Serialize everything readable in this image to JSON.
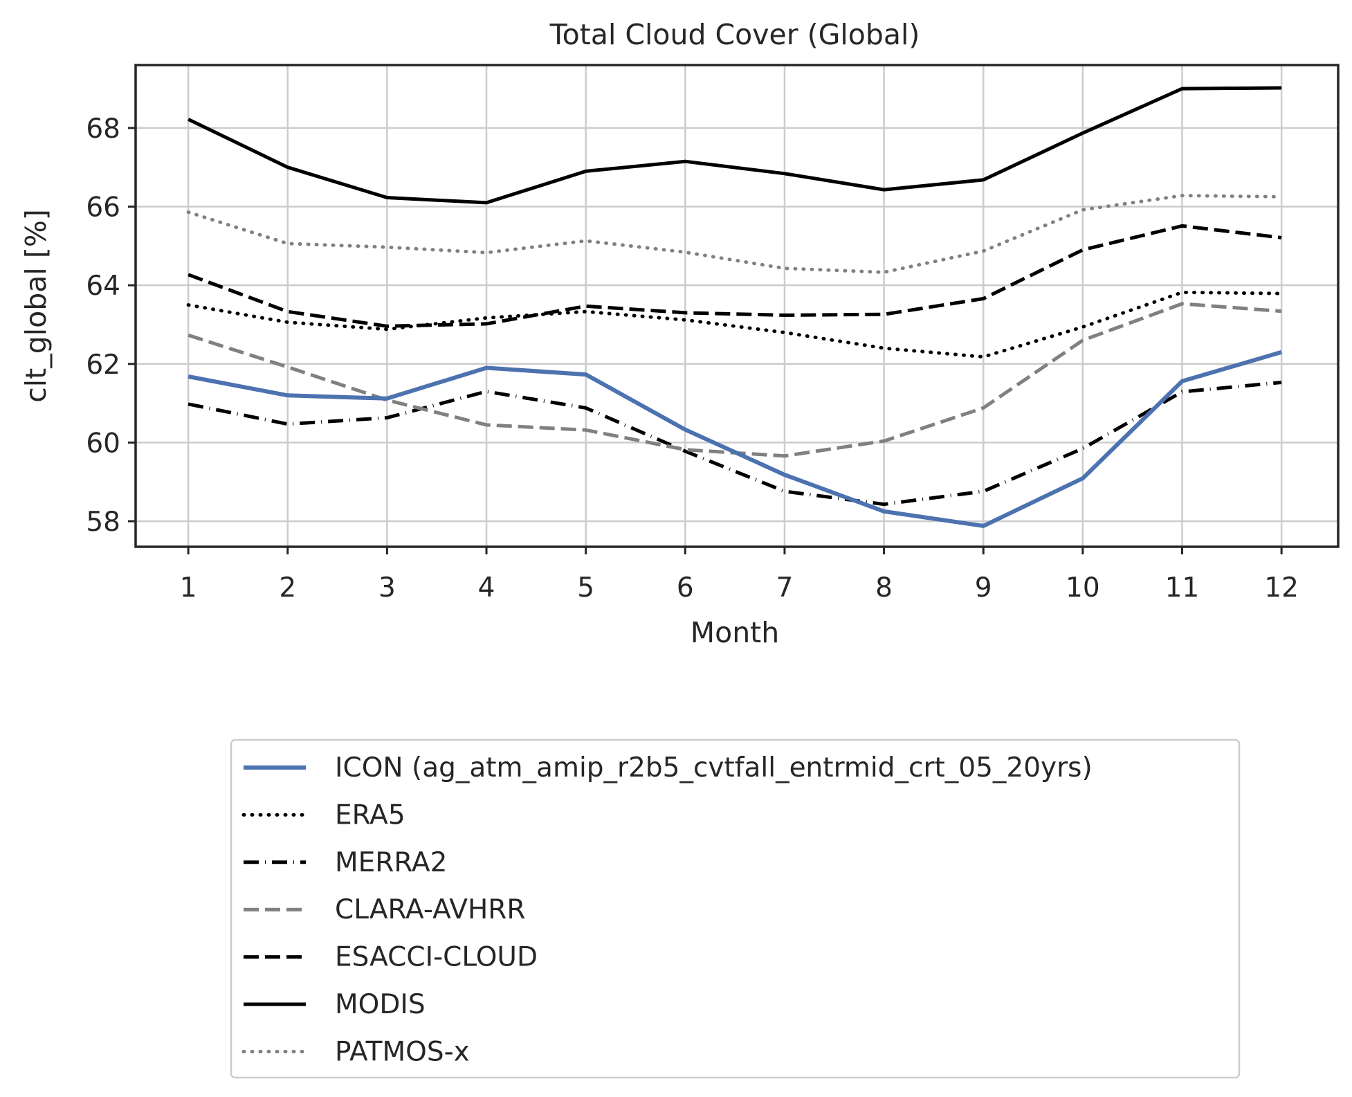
{
  "chart_data": {
    "type": "line",
    "title": "Total Cloud Cover (Global)",
    "xlabel": "Month",
    "ylabel": "clt_global [%]",
    "x": [
      1,
      2,
      3,
      4,
      5,
      6,
      7,
      8,
      9,
      10,
      11,
      12
    ],
    "x_ticks": [
      "1",
      "2",
      "3",
      "4",
      "5",
      "6",
      "7",
      "8",
      "9",
      "10",
      "11",
      "12"
    ],
    "xlim": [
      0.47,
      12.57
    ],
    "y_ticks": [
      "58",
      "60",
      "62",
      "64",
      "66",
      "68"
    ],
    "y_tick_values": [
      58,
      60,
      62,
      64,
      66,
      68
    ],
    "ylim": [
      57.35,
      69.6
    ],
    "grid": true,
    "legend_position": "below-center",
    "series": [
      {
        "name": "ICON (ag_atm_amip_r2b5_cvtfall_entrmid_crt_05_20yrs)",
        "color": "#4c72b0",
        "style": "solid",
        "values": [
          61.68,
          61.2,
          61.12,
          61.9,
          61.73,
          60.33,
          59.18,
          58.25,
          57.88,
          59.09,
          61.56,
          62.3
        ]
      },
      {
        "name": "ERA5",
        "color": "#000000",
        "style": "dotted",
        "values": [
          63.5,
          63.06,
          62.88,
          63.17,
          63.33,
          63.12,
          62.8,
          62.4,
          62.18,
          62.94,
          63.82,
          63.79
        ]
      },
      {
        "name": "MERRA2",
        "color": "#000000",
        "style": "dashdot",
        "values": [
          60.98,
          60.47,
          60.63,
          61.3,
          60.88,
          59.78,
          58.76,
          58.43,
          58.76,
          59.85,
          61.29,
          61.53
        ]
      },
      {
        "name": "CLARA-AVHRR",
        "color": "#808080",
        "style": "dashed",
        "values": [
          62.73,
          61.92,
          61.08,
          60.45,
          60.32,
          59.82,
          59.66,
          60.04,
          60.88,
          62.6,
          63.53,
          63.34
        ]
      },
      {
        "name": "ESACCI-CLOUD",
        "color": "#000000",
        "style": "dashed",
        "values": [
          64.27,
          63.33,
          62.96,
          63.02,
          63.47,
          63.3,
          63.24,
          63.26,
          63.66,
          64.9,
          65.51,
          65.21
        ]
      },
      {
        "name": "MODIS",
        "color": "#000000",
        "style": "solid",
        "values": [
          68.22,
          67.0,
          66.23,
          66.1,
          66.9,
          67.15,
          66.84,
          66.43,
          66.68,
          67.87,
          69.0,
          69.02
        ]
      },
      {
        "name": "PATMOS-x",
        "color": "#808080",
        "style": "dotted",
        "values": [
          65.86,
          65.06,
          64.97,
          64.83,
          65.13,
          64.84,
          64.43,
          64.33,
          64.87,
          65.92,
          66.28,
          66.25
        ]
      }
    ]
  }
}
